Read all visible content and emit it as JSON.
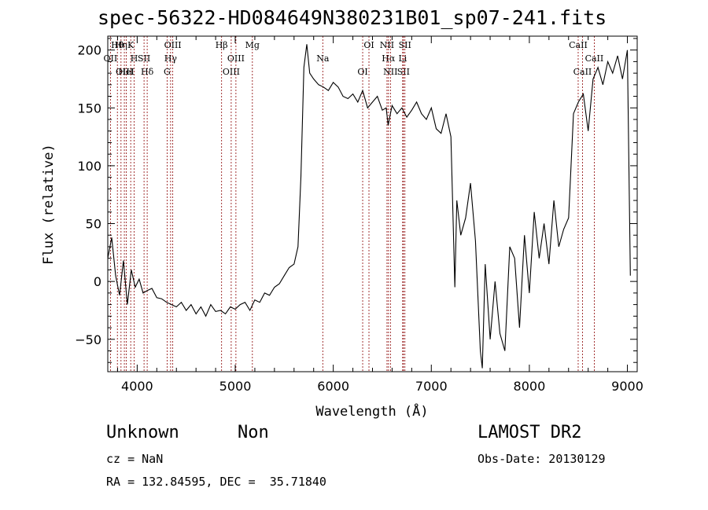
{
  "title": "spec-56322-HD084649N380231B01_sp07-241.fits",
  "footer": {
    "object_class": "Unknown",
    "object_subclass": "Non",
    "survey": "LAMOST DR2",
    "cz": "cz = NaN",
    "obs_date": "Obs-Date: 20130129",
    "coords": "RA = 132.84595, DEC =  35.71840"
  },
  "colors": {
    "line": "#000000",
    "markers": "#8b0000",
    "background": "#ffffff"
  },
  "chart_data": {
    "type": "line",
    "title": "spec-56322-HD084649N380231B01_sp07-241.fits",
    "xlabel": "Wavelength (Å)",
    "ylabel": "Flux (relative)",
    "xlim": [
      3700,
      9100
    ],
    "ylim": [
      -78,
      212
    ],
    "xticks": [
      4000,
      5000,
      6000,
      7000,
      8000,
      9000
    ],
    "yticks": [
      -50,
      0,
      50,
      100,
      150,
      200
    ],
    "grid": false,
    "legend": "none",
    "series": [
      {
        "values_x": [
          3700,
          3740,
          3780,
          3820,
          3860,
          3900,
          3940,
          3980,
          4020,
          4060,
          4100,
          4150,
          4200,
          4250,
          4300,
          4350,
          4400,
          4450,
          4500,
          4550,
          4600,
          4650,
          4700,
          4750,
          4800,
          4850,
          4900,
          4950,
          5000,
          5050,
          5100,
          5150,
          5200,
          5250,
          5300,
          5350,
          5400,
          5450,
          5500,
          5550,
          5600,
          5640,
          5670,
          5700,
          5730,
          5760,
          5800,
          5850,
          5900,
          5950,
          6000,
          6050,
          6100,
          6150,
          6200,
          6250,
          6300,
          6350,
          6400,
          6450,
          6500,
          6540,
          6560,
          6600,
          6650,
          6700,
          6750,
          6800,
          6850,
          6900,
          6950,
          7000,
          7050,
          7100,
          7150,
          7200,
          7240,
          7260,
          7300,
          7350,
          7400,
          7450,
          7500,
          7520,
          7550,
          7600,
          7650,
          7700,
          7750,
          7800,
          7850,
          7900,
          7950,
          8000,
          8050,
          8100,
          8150,
          8200,
          8250,
          8300,
          8350,
          8400,
          8450,
          8500,
          8550,
          8600,
          8650,
          8700,
          8750,
          8800,
          8850,
          8900,
          8950,
          9000,
          9030
        ],
        "values_y": [
          20,
          38,
          5,
          -12,
          18,
          -20,
          10,
          -5,
          2,
          -10,
          -8,
          -6,
          -14,
          -15,
          -18,
          -20,
          -22,
          -18,
          -25,
          -20,
          -28,
          -22,
          -30,
          -20,
          -26,
          -25,
          -28,
          -22,
          -24,
          -20,
          -18,
          -25,
          -16,
          -18,
          -10,
          -12,
          -5,
          -2,
          5,
          12,
          15,
          30,
          90,
          185,
          205,
          180,
          175,
          170,
          168,
          165,
          172,
          168,
          160,
          158,
          162,
          155,
          165,
          150,
          155,
          160,
          148,
          150,
          135,
          152,
          145,
          150,
          142,
          148,
          155,
          145,
          140,
          150,
          132,
          128,
          145,
          125,
          -5,
          70,
          40,
          55,
          85,
          35,
          -60,
          -75,
          15,
          -50,
          0,
          -45,
          -60,
          30,
          20,
          -40,
          40,
          -10,
          60,
          20,
          50,
          15,
          70,
          30,
          45,
          55,
          145,
          155,
          162,
          130,
          175,
          185,
          170,
          190,
          180,
          195,
          175,
          200,
          5
        ]
      }
    ],
    "line_markers": [
      {
        "label": "Hθ",
        "wavelength": 3798
      },
      {
        "label": "OII",
        "wavelength": 3727
      },
      {
        "label": "OIII",
        "wavelength": 3869
      },
      {
        "label": "K",
        "wavelength": 3934
      },
      {
        "label": "H",
        "wavelength": 3969
      },
      {
        "label": "HeI",
        "wavelength": 3889
      },
      {
        "label": "Hη",
        "wavelength": 3835
      },
      {
        "label": "SII",
        "wavelength": 4070
      },
      {
        "label": "Hδ",
        "wavelength": 4102
      },
      {
        "label": "OIII",
        "wavelength": 4363
      },
      {
        "label": "Hγ",
        "wavelength": 4341
      },
      {
        "label": "G",
        "wavelength": 4305
      },
      {
        "label": "Hβ",
        "wavelength": 4861
      },
      {
        "label": "OIII",
        "wavelength": 5007
      },
      {
        "label": "OIII",
        "wavelength": 4959
      },
      {
        "label": "Mg",
        "wavelength": 5175
      },
      {
        "label": "Na",
        "wavelength": 5893
      },
      {
        "label": "OI",
        "wavelength": 6300
      },
      {
        "label": "OI",
        "wavelength": 6364
      },
      {
        "label": "Hα",
        "wavelength": 6563
      },
      {
        "label": "SII",
        "wavelength": 6716
      },
      {
        "label": "NII",
        "wavelength": 6548
      },
      {
        "label": "Li",
        "wavelength": 6708
      },
      {
        "label": "NII",
        "wavelength": 6583
      },
      {
        "label": "SII",
        "wavelength": 6731
      },
      {
        "label": "CaII",
        "wavelength": 8662
      },
      {
        "label": "CaII",
        "wavelength": 8542
      },
      {
        "label": "CaII",
        "wavelength": 8498
      }
    ]
  }
}
